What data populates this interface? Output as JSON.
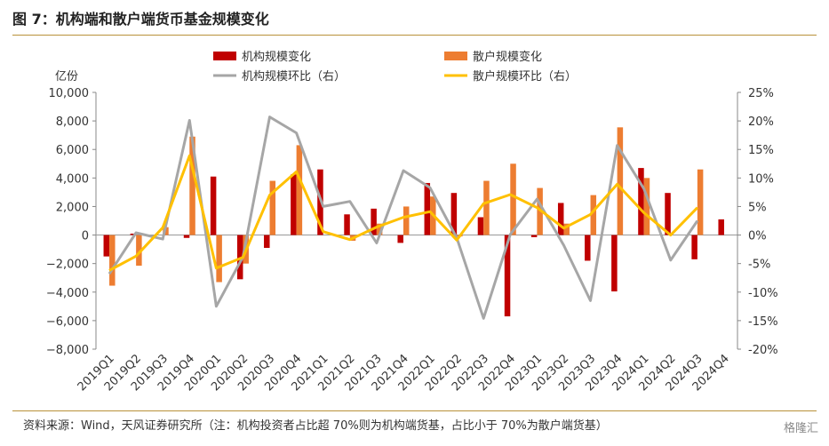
{
  "header": {
    "title": "图 7：机构端和散户端货币基金规模变化"
  },
  "footer": {
    "source": "资料来源：Wind，天风证券研究所（注：机构投资者占比超 70%则为机构端货基，占比小于 70%为散户端货基）",
    "watermark": "格隆汇"
  },
  "chart_data": {
    "type": "bar+line",
    "title": "图 7：机构端和散户端货币基金规模变化",
    "y_unit_label": "亿份",
    "categories": [
      "2019Q1",
      "2019Q2",
      "2019Q3",
      "2019Q4",
      "2020Q1",
      "2020Q2",
      "2020Q3",
      "2020Q4",
      "2021Q1",
      "2021Q2",
      "2021Q3",
      "2021Q4",
      "2022Q1",
      "2022Q2",
      "2022Q3",
      "2022Q4",
      "2023Q1",
      "2023Q2",
      "2023Q3",
      "2023Q4",
      "2024Q1",
      "2024Q2",
      "2024Q3",
      "2024Q4"
    ],
    "ylim_left": [
      -8000,
      10000
    ],
    "yticks_left": [
      -8000,
      -6000,
      -4000,
      -2000,
      0,
      2000,
      4000,
      6000,
      8000,
      10000
    ],
    "ytick_labels_left": [
      "−8,000",
      "−6,000",
      "−4,000",
      "−2,000",
      "0",
      "2,000",
      "4,000",
      "6,000",
      "8,000",
      "10,000"
    ],
    "ylim_right": [
      -20,
      25
    ],
    "yticks_right": [
      -20,
      -15,
      -10,
      -5,
      0,
      5,
      10,
      15,
      20,
      25
    ],
    "ytick_labels_right": [
      "-20%",
      "-15%",
      "-10%",
      "-5%",
      "0%",
      "5%",
      "10%",
      "15%",
      "20%",
      "25%"
    ],
    "series": [
      {
        "name": "机构规模变化",
        "kind": "bar",
        "axis": "left",
        "color": "#c00000",
        "values": [
          -1500,
          100,
          0,
          -200,
          4100,
          -3100,
          -900,
          4250,
          4600,
          1450,
          1850,
          -550,
          3650,
          2950,
          1250,
          -5700,
          -150,
          2250,
          -1800,
          -3950,
          4700,
          2950,
          -1700,
          1100
        ]
      },
      {
        "name": "散户规模变化",
        "kind": "bar",
        "axis": "left",
        "color": "#ed7d31",
        "values": [
          -3550,
          -2150,
          550,
          6900,
          -3300,
          -2000,
          3800,
          6300,
          0,
          -400,
          800,
          2000,
          2700,
          -100,
          3800,
          5000,
          3300,
          800,
          2800,
          7550,
          4000,
          0,
          4600,
          0
        ]
      },
      {
        "name": "机构规模环比（右）",
        "kind": "line",
        "axis": "right",
        "color": "#a6a6a6",
        "values": [
          -6.8,
          0.4,
          -0.7,
          20.1,
          -12.5,
          -3.8,
          20.7,
          17.9,
          5.0,
          5.9,
          -1.4,
          11.3,
          8.3,
          -0.5,
          -14.6,
          0.1,
          6.3,
          -1.8,
          -11.5,
          15.7,
          8.1,
          -4.4,
          2.5,
          null
        ]
      },
      {
        "name": "散户规模环比（右）",
        "kind": "line",
        "axis": "right",
        "color": "#ffc000",
        "values": [
          -6.2,
          -3.7,
          1.3,
          13.9,
          -5.8,
          -3.9,
          7.0,
          11.1,
          0.6,
          -0.8,
          1.4,
          3.1,
          4.1,
          -0.9,
          5.5,
          7.1,
          4.8,
          1.2,
          3.6,
          8.9,
          3.9,
          0.0,
          4.8,
          null
        ]
      }
    ],
    "legend": [
      "机构规模变化",
      "散户规模变化",
      "机构规模环比（右）",
      "散户规模环比（右）"
    ]
  }
}
